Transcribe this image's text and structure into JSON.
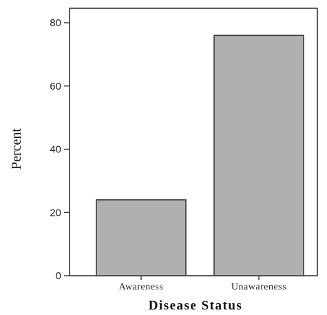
{
  "chart_data": {
    "type": "bar",
    "categories": [
      "Awareness",
      "Unawareness"
    ],
    "values": [
      24,
      76
    ],
    "xlabel": "Disease Status",
    "ylabel": "Percent",
    "ylim": [
      0,
      85
    ],
    "yticks": [
      0,
      20,
      40,
      60,
      80
    ],
    "grid": false,
    "bar_color": "#b0b0b0",
    "bar_edge_color": "#3a3a3a",
    "axis_color": "#333333"
  }
}
